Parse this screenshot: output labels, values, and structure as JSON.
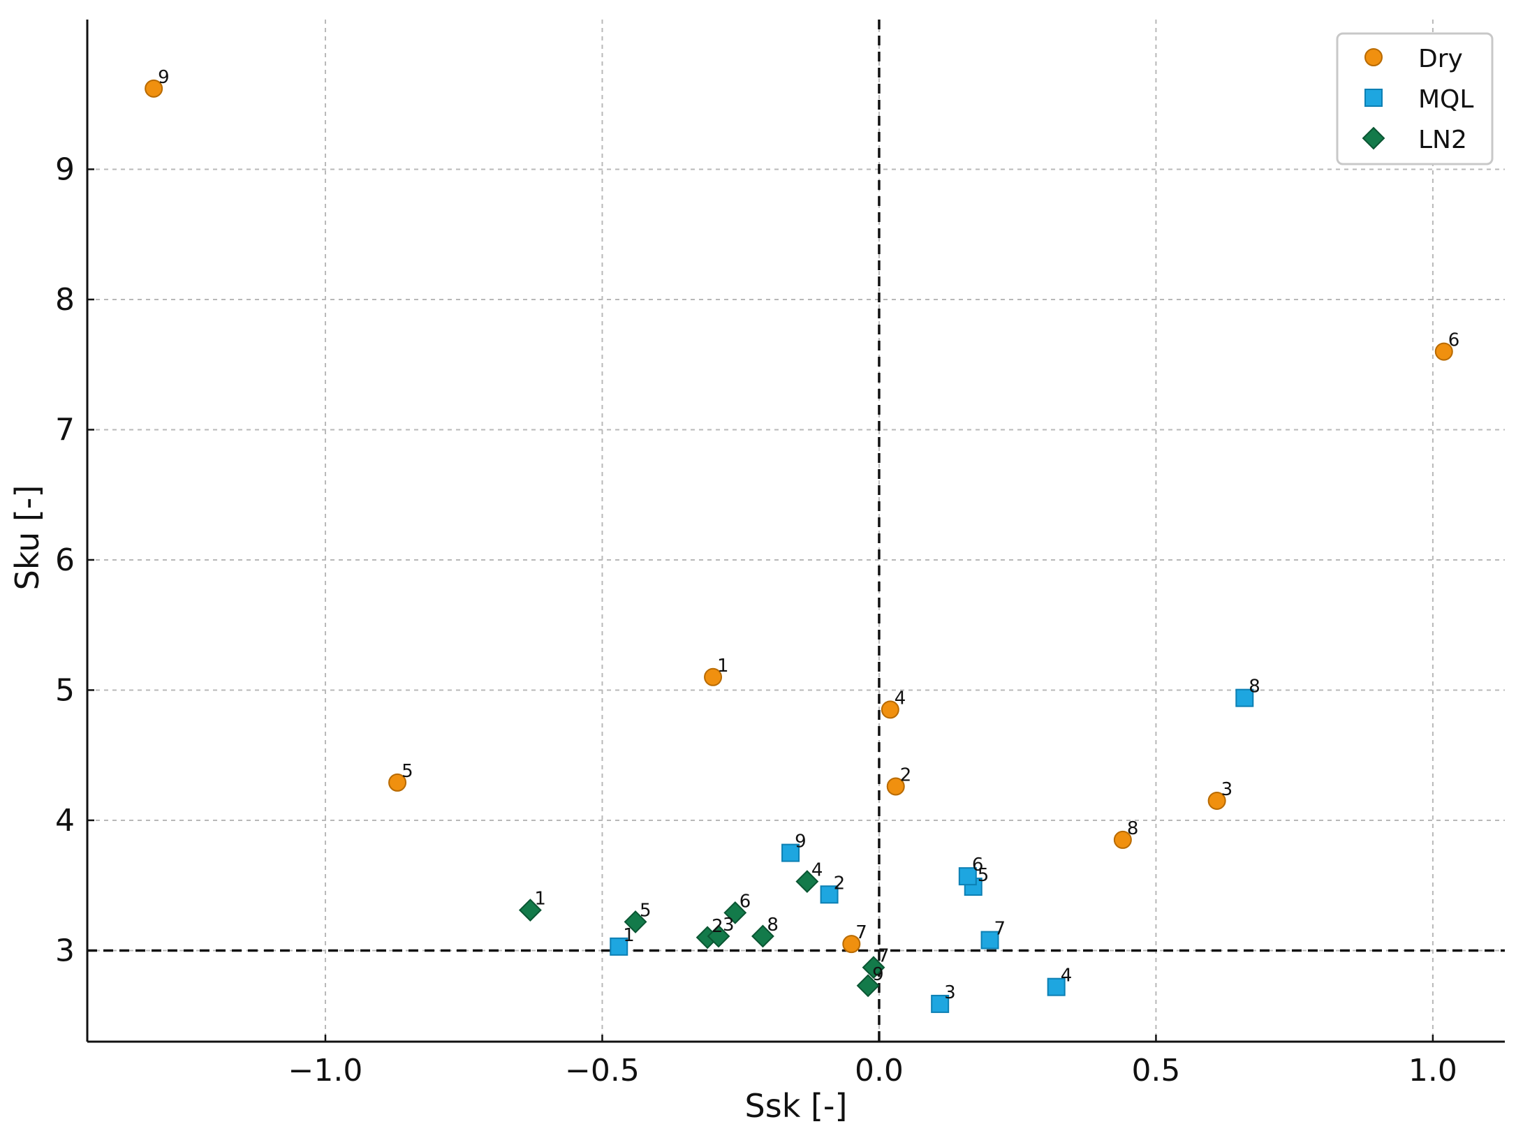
{
  "chart_data": {
    "type": "scatter",
    "title": "",
    "xlabel": "Ssk [-]",
    "ylabel": "Sku [-]",
    "xlim": [
      -1.43,
      1.13
    ],
    "ylim": [
      2.3,
      10.15
    ],
    "x_ticks": [
      -1.0,
      -0.5,
      0.0,
      0.5,
      1.0
    ],
    "x_tick_labels": [
      "−1.0",
      "−0.5",
      "0.0",
      "0.5",
      "1.0"
    ],
    "y_ticks": [
      3,
      4,
      5,
      6,
      7,
      8,
      9
    ],
    "y_tick_labels": [
      "3",
      "4",
      "5",
      "6",
      "7",
      "8",
      "9"
    ],
    "grid": true,
    "legend_position": "top-right",
    "reference_lines": {
      "x": 0.0,
      "y": 3.0
    },
    "series": [
      {
        "name": "Dry",
        "marker": "circle",
        "color": "#f0900f",
        "points": [
          {
            "label": "1",
            "x": -0.3,
            "y": 5.1
          },
          {
            "label": "2",
            "x": 0.03,
            "y": 4.26
          },
          {
            "label": "3",
            "x": 0.61,
            "y": 4.15
          },
          {
            "label": "4",
            "x": 0.02,
            "y": 4.85
          },
          {
            "label": "5",
            "x": -0.87,
            "y": 4.29
          },
          {
            "label": "6",
            "x": 1.02,
            "y": 7.6
          },
          {
            "label": "7",
            "x": -0.05,
            "y": 3.05
          },
          {
            "label": "8",
            "x": 0.44,
            "y": 3.85
          },
          {
            "label": "9",
            "x": -1.31,
            "y": 9.62
          }
        ]
      },
      {
        "name": "MQL",
        "marker": "square",
        "color": "#1ea6e0",
        "points": [
          {
            "label": "1",
            "x": -0.47,
            "y": 3.03
          },
          {
            "label": "2",
            "x": -0.09,
            "y": 3.43
          },
          {
            "label": "3",
            "x": 0.11,
            "y": 2.59
          },
          {
            "label": "4",
            "x": 0.32,
            "y": 2.72
          },
          {
            "label": "5",
            "x": 0.17,
            "y": 3.49
          },
          {
            "label": "6",
            "x": 0.16,
            "y": 3.57
          },
          {
            "label": "7",
            "x": 0.2,
            "y": 3.08
          },
          {
            "label": "8",
            "x": 0.66,
            "y": 4.94
          },
          {
            "label": "9",
            "x": -0.16,
            "y": 3.75
          }
        ]
      },
      {
        "name": "LN2",
        "marker": "diamond",
        "color": "#137a4a",
        "points": [
          {
            "label": "1",
            "x": -0.63,
            "y": 3.31
          },
          {
            "label": "2",
            "x": -0.31,
            "y": 3.1
          },
          {
            "label": "3",
            "x": -0.29,
            "y": 3.11
          },
          {
            "label": "4",
            "x": -0.13,
            "y": 3.53
          },
          {
            "label": "5",
            "x": -0.44,
            "y": 3.22
          },
          {
            "label": "6",
            "x": -0.26,
            "y": 3.29
          },
          {
            "label": "7",
            "x": -0.01,
            "y": 2.87
          },
          {
            "label": "8",
            "x": -0.21,
            "y": 3.11
          },
          {
            "label": "9",
            "x": -0.02,
            "y": 2.73
          }
        ]
      }
    ]
  }
}
